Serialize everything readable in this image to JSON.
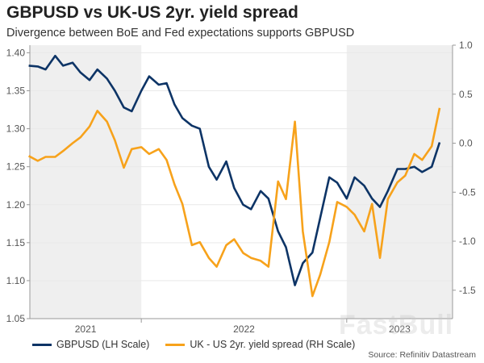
{
  "chart_data": {
    "type": "line",
    "title": "GBPUSD vs UK-US 2yr. yield spread",
    "subtitle": "Divergence between BoE and Fed expectations supports GBPUSD",
    "source": "Source: Refinitiv Datastream",
    "watermark": "FastBull",
    "x_tick_labels": [
      "2021",
      "2022",
      "2023"
    ],
    "shaded_years": [
      "2021",
      "2023"
    ],
    "xlim": [
      "2021-06-17",
      "2023-07-08"
    ],
    "y_left": {
      "ticks": [
        "1.05",
        "1.10",
        "1.15",
        "1.20",
        "1.25",
        "1.30",
        "1.35",
        "1.40"
      ],
      "ylim": [
        1.05,
        1.41
      ]
    },
    "y_right": {
      "ticks": [
        "-1.5",
        "-1.0",
        "-0.5",
        "0.0",
        "0.5",
        "1.0"
      ],
      "ylim": [
        -1.79,
        1.0
      ]
    },
    "grid": true,
    "legend_placement": "bottom",
    "x": [
      "2021-06-15",
      "2021-07-01",
      "2021-07-15",
      "2021-08-01",
      "2021-08-15",
      "2021-09-01",
      "2021-09-15",
      "2021-10-01",
      "2021-10-15",
      "2021-11-01",
      "2021-11-15",
      "2021-12-01",
      "2021-12-15",
      "2022-01-01",
      "2022-01-15",
      "2022-02-01",
      "2022-02-15",
      "2022-03-01",
      "2022-03-15",
      "2022-04-01",
      "2022-04-15",
      "2022-05-01",
      "2022-05-15",
      "2022-06-01",
      "2022-06-15",
      "2022-07-01",
      "2022-07-15",
      "2022-08-01",
      "2022-08-15",
      "2022-09-01",
      "2022-09-15",
      "2022-10-01",
      "2022-10-15",
      "2022-11-01",
      "2022-11-15",
      "2022-12-01",
      "2022-12-15",
      "2023-01-01",
      "2023-01-15",
      "2023-02-01",
      "2023-02-15",
      "2023-03-01",
      "2023-03-15",
      "2023-04-01",
      "2023-04-15",
      "2023-05-01",
      "2023-05-15",
      "2023-06-01",
      "2023-06-15"
    ],
    "series": [
      {
        "name": "GBPUSD (LH Scale)",
        "axis": "left",
        "color": "#0d3466",
        "values": [
          1.383,
          1.382,
          1.378,
          1.396,
          1.383,
          1.387,
          1.374,
          1.364,
          1.378,
          1.366,
          1.35,
          1.328,
          1.323,
          1.35,
          1.369,
          1.358,
          1.36,
          1.332,
          1.314,
          1.304,
          1.3,
          1.25,
          1.233,
          1.257,
          1.222,
          1.2,
          1.194,
          1.218,
          1.208,
          1.165,
          1.144,
          1.094,
          1.123,
          1.137,
          1.183,
          1.236,
          1.229,
          1.208,
          1.236,
          1.225,
          1.208,
          1.197,
          1.218,
          1.247,
          1.247,
          1.25,
          1.243,
          1.25,
          1.282
        ]
      },
      {
        "name": "UK - US 2yr. yield spread (RH Scale)",
        "axis": "right",
        "color": "#f7a21b",
        "values": [
          -0.13,
          -0.18,
          -0.14,
          -0.14,
          -0.08,
          0.0,
          0.06,
          0.17,
          0.33,
          0.22,
          0.03,
          -0.25,
          -0.06,
          -0.04,
          -0.11,
          -0.06,
          -0.17,
          -0.42,
          -0.62,
          -1.04,
          -1.01,
          -1.17,
          -1.26,
          -1.04,
          -0.98,
          -1.12,
          -1.17,
          -1.2,
          -1.26,
          -0.39,
          -0.57,
          0.22,
          -0.9,
          -1.56,
          -1.34,
          -1.01,
          -0.6,
          -0.65,
          -0.73,
          -0.9,
          -0.62,
          -1.17,
          -0.57,
          -0.4,
          -0.33,
          -0.11,
          -0.17,
          -0.03,
          0.36
        ]
      }
    ]
  }
}
